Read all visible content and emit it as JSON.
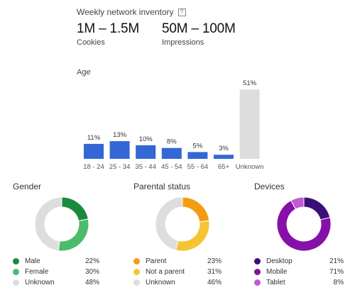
{
  "header": {
    "title": "Weekly network inventory",
    "help_glyph": "?",
    "stats": [
      {
        "value": "1M – 1.5M",
        "label": "Cookies"
      },
      {
        "value": "50M – 100M",
        "label": "Impressions"
      }
    ]
  },
  "chart_data": [
    {
      "type": "bar",
      "title": "Age",
      "categories": [
        "18 - 24",
        "25 - 34",
        "35 - 44",
        "45 - 54",
        "55 - 64",
        "65+",
        "Unknown"
      ],
      "values": [
        11,
        13,
        10,
        8,
        5,
        3,
        51
      ],
      "data_labels": [
        "11%",
        "13%",
        "10%",
        "8%",
        "5%",
        "3%",
        "51%"
      ],
      "colors": [
        "#3367d6",
        "#3367d6",
        "#3367d6",
        "#3367d6",
        "#3367d6",
        "#3367d6",
        "#dddddd"
      ],
      "grid": false
    },
    {
      "type": "pie",
      "title": "Gender",
      "categories": [
        "Male",
        "Female",
        "Unknown"
      ],
      "values": [
        22,
        30,
        48
      ],
      "value_labels": [
        "22%",
        "30%",
        "48%"
      ],
      "colors": [
        "#1a8a3c",
        "#4cbb6c",
        "#dddddd"
      ]
    },
    {
      "type": "pie",
      "title": "Parental status",
      "categories": [
        "Parent",
        "Not a parent",
        "Unknown"
      ],
      "values": [
        23,
        31,
        46
      ],
      "value_labels": [
        "23%",
        "31%",
        "46%"
      ],
      "colors": [
        "#f39c12",
        "#f4c531",
        "#dddddd"
      ]
    },
    {
      "type": "pie",
      "title": "Devices",
      "categories": [
        "Desktop",
        "Mobile",
        "Tablet"
      ],
      "values": [
        21,
        71,
        8
      ],
      "value_labels": [
        "21%",
        "71%",
        "8%"
      ],
      "colors": [
        "#3a1078",
        "#8710a8",
        "#c15ad6"
      ]
    }
  ]
}
